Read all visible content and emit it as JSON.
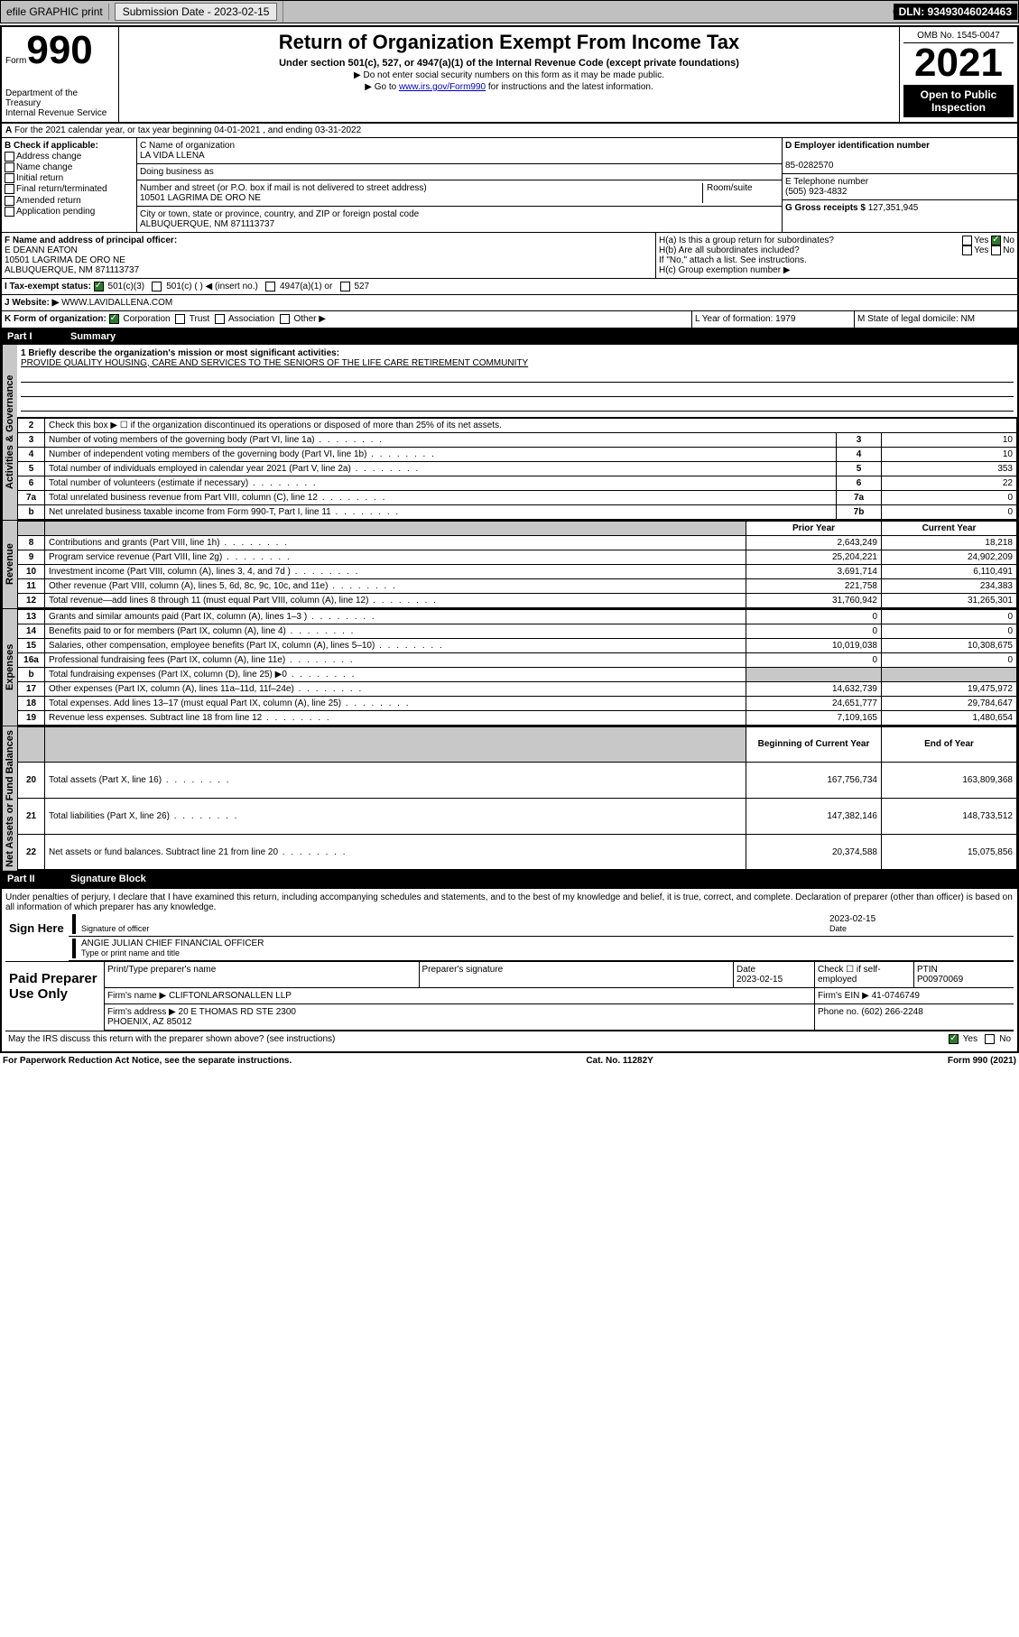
{
  "header": {
    "efile": "efile GRAPHIC print",
    "submission_label": "Submission Date - 2023-02-15",
    "dln": "DLN: 93493046024463"
  },
  "form": {
    "form_label": "Form",
    "form_num": "990",
    "title": "Return of Organization Exempt From Income Tax",
    "subtitle": "Under section 501(c), 527, or 4947(a)(1) of the Internal Revenue Code (except private foundations)",
    "note1": "▶ Do not enter social security numbers on this form as it may be made public.",
    "note2_pre": "▶ Go to ",
    "note2_link": "www.irs.gov/Form990",
    "note2_post": " for instructions and the latest information.",
    "dept": "Department of the Treasury\nInternal Revenue Service",
    "omb": "OMB No. 1545-0047",
    "year": "2021",
    "inspection": "Open to Public Inspection"
  },
  "section_a": "For the 2021 calendar year, or tax year beginning 04-01-2021    , and ending 03-31-2022",
  "section_b": {
    "label": "B Check if applicable:",
    "opts": [
      "Address change",
      "Name change",
      "Initial return",
      "Final return/terminated",
      "Amended return",
      "Application pending"
    ]
  },
  "section_c": {
    "name_label": "C Name of organization",
    "name": "LA VIDA LLENA",
    "dba_label": "Doing business as",
    "addr_label": "Number and street (or P.O. box if mail is not delivered to street address)",
    "room_label": "Room/suite",
    "addr": "10501 LAGRIMA DE ORO NE",
    "city_label": "City or town, state or province, country, and ZIP or foreign postal code",
    "city": "ALBUQUERQUE, NM  871113737"
  },
  "section_d": {
    "ein_label": "D Employer identification number",
    "ein": "85-0282570",
    "phone_label": "E Telephone number",
    "phone": "(505) 923-4832",
    "gross_label": "G Gross receipts $",
    "gross": "127,351,945"
  },
  "section_f": {
    "label": "F  Name and address of principal officer:",
    "name": "E DEANN EATON",
    "addr1": "10501 LAGRIMA DE ORO NE",
    "addr2": "ALBUQUERQUE, NM  871113737"
  },
  "section_h": {
    "h1a": "H(a)  Is this a group return for subordinates?",
    "h1b": "H(b)  Are all subordinates included?",
    "hnote": "If \"No,\" attach a list. See instructions.",
    "h1c": "H(c)  Group exemption number ▶"
  },
  "section_i": {
    "label": "I   Tax-exempt status:",
    "opts": [
      "501(c)(3)",
      "501(c) (  ) ◀ (insert no.)",
      "4947(a)(1) or",
      "527"
    ]
  },
  "section_j": {
    "label": "J   Website: ▶",
    "value": "WWW.LAVIDALLENA.COM"
  },
  "section_k": {
    "label": "K Form of organization:",
    "opts": [
      "Corporation",
      "Trust",
      "Association",
      "Other ▶"
    ]
  },
  "section_lm": {
    "l": "L Year of formation: 1979",
    "m": "M State of legal domicile: NM"
  },
  "part1": {
    "header_label": "Part I",
    "header_title": "Summary",
    "mission_label": "1   Briefly describe the organization's mission or most significant activities:",
    "mission": "PROVIDE QUALITY HOUSING, CARE AND SERVICES TO THE SENIORS OF THE LIFE CARE RETIREMENT COMMUNITY",
    "rows_ag": [
      {
        "n": "2",
        "label": "Check this box ▶ ☐  if the organization discontinued its operations or disposed of more than 25% of its net assets."
      },
      {
        "n": "3",
        "label": "Number of voting members of the governing body (Part VI, line 1a)",
        "box": "3",
        "val": "10"
      },
      {
        "n": "4",
        "label": "Number of independent voting members of the governing body (Part VI, line 1b)",
        "box": "4",
        "val": "10"
      },
      {
        "n": "5",
        "label": "Total number of individuals employed in calendar year 2021 (Part V, line 2a)",
        "box": "5",
        "val": "353"
      },
      {
        "n": "6",
        "label": "Total number of volunteers (estimate if necessary)",
        "box": "6",
        "val": "22"
      },
      {
        "n": "7a",
        "label": "Total unrelated business revenue from Part VIII, column (C), line 12",
        "box": "7a",
        "val": "0"
      },
      {
        "n": "b",
        "label": "Net unrelated business taxable income from Form 990-T, Part I, line 11",
        "box": "7b",
        "val": "0"
      }
    ],
    "col_headers": {
      "prior": "Prior Year",
      "current": "Current Year"
    },
    "rows_rev": [
      {
        "n": "8",
        "label": "Contributions and grants (Part VIII, line 1h)",
        "prior": "2,643,249",
        "cur": "18,218"
      },
      {
        "n": "9",
        "label": "Program service revenue (Part VIII, line 2g)",
        "prior": "25,204,221",
        "cur": "24,902,209"
      },
      {
        "n": "10",
        "label": "Investment income (Part VIII, column (A), lines 3, 4, and 7d )",
        "prior": "3,691,714",
        "cur": "6,110,491"
      },
      {
        "n": "11",
        "label": "Other revenue (Part VIII, column (A), lines 5, 6d, 8c, 9c, 10c, and 11e)",
        "prior": "221,758",
        "cur": "234,383"
      },
      {
        "n": "12",
        "label": "Total revenue—add lines 8 through 11 (must equal Part VIII, column (A), line 12)",
        "prior": "31,760,942",
        "cur": "31,265,301"
      }
    ],
    "rows_exp": [
      {
        "n": "13",
        "label": "Grants and similar amounts paid (Part IX, column (A), lines 1–3 )",
        "prior": "0",
        "cur": "0"
      },
      {
        "n": "14",
        "label": "Benefits paid to or for members (Part IX, column (A), line 4)",
        "prior": "0",
        "cur": "0"
      },
      {
        "n": "15",
        "label": "Salaries, other compensation, employee benefits (Part IX, column (A), lines 5–10)",
        "prior": "10,019,038",
        "cur": "10,308,675"
      },
      {
        "n": "16a",
        "label": "Professional fundraising fees (Part IX, column (A), line 11e)",
        "prior": "0",
        "cur": "0"
      },
      {
        "n": "b",
        "label": "Total fundraising expenses (Part IX, column (D), line 25) ▶0",
        "prior": "",
        "cur": "",
        "shaded": true
      },
      {
        "n": "17",
        "label": "Other expenses (Part IX, column (A), lines 11a–11d, 11f–24e)",
        "prior": "14,632,739",
        "cur": "19,475,972"
      },
      {
        "n": "18",
        "label": "Total expenses. Add lines 13–17 (must equal Part IX, column (A), line 25)",
        "prior": "24,651,777",
        "cur": "29,784,647"
      },
      {
        "n": "19",
        "label": "Revenue less expenses. Subtract line 18 from line 12",
        "prior": "7,109,165",
        "cur": "1,480,654"
      }
    ],
    "col_headers2": {
      "begin": "Beginning of Current Year",
      "end": "End of Year"
    },
    "rows_net": [
      {
        "n": "20",
        "label": "Total assets (Part X, line 16)",
        "prior": "167,756,734",
        "cur": "163,809,368"
      },
      {
        "n": "21",
        "label": "Total liabilities (Part X, line 26)",
        "prior": "147,382,146",
        "cur": "148,733,512"
      },
      {
        "n": "22",
        "label": "Net assets or fund balances. Subtract line 21 from line 20",
        "prior": "20,374,588",
        "cur": "15,075,856"
      }
    ],
    "sidebars": {
      "ag": "Activities & Governance",
      "rev": "Revenue",
      "exp": "Expenses",
      "net": "Net Assets or Fund Balances"
    }
  },
  "part2": {
    "header_label": "Part II",
    "header_title": "Signature Block",
    "perjury": "Under penalties of perjury, I declare that I have examined this return, including accompanying schedules and statements, and to the best of my knowledge and belief, it is true, correct, and complete. Declaration of preparer (other than officer) is based on all information of which preparer has any knowledge.",
    "sign_here": "Sign Here",
    "sig_officer": "Signature of officer",
    "sig_date": "2023-02-15",
    "sig_date_label": "Date",
    "officer_name": "ANGIE JULIAN  CHIEF FINANCIAL OFFICER",
    "type_label": "Type or print name and title",
    "paid": "Paid Preparer Use Only",
    "prep_name_label": "Print/Type preparer's name",
    "prep_sig_label": "Preparer's signature",
    "prep_date": "Date\n2023-02-15",
    "prep_check": "Check ☐ if self-employed",
    "ptin_label": "PTIN",
    "ptin": "P00970069",
    "firm_name_label": "Firm's name      ▶",
    "firm_name": "CLIFTONLARSONALLEN LLP",
    "firm_ein_label": "Firm's EIN ▶",
    "firm_ein": "41-0746749",
    "firm_addr_label": "Firm's address ▶",
    "firm_addr": "20 E THOMAS RD STE 2300\nPHOENIX, AZ  85012",
    "firm_phone_label": "Phone no.",
    "firm_phone": "(602) 266-2248",
    "discuss": "May the IRS discuss this return with the preparer shown above? (see instructions)"
  },
  "footer": {
    "left": "For Paperwork Reduction Act Notice, see the separate instructions.",
    "mid": "Cat. No. 11282Y",
    "right": "Form 990 (2021)"
  }
}
